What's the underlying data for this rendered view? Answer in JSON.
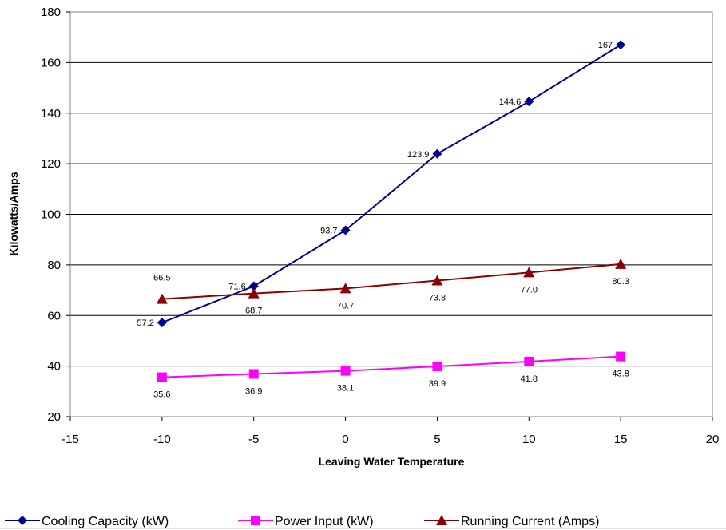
{
  "chart_data": {
    "type": "line",
    "xlabel": "Leaving Water Temperature",
    "ylabel": "Kilowatts/Amps",
    "xlim": [
      -15,
      20
    ],
    "ylim": [
      20,
      180
    ],
    "x_ticks": [
      -15,
      -10,
      -5,
      0,
      5,
      10,
      15,
      20
    ],
    "y_ticks": [
      20,
      40,
      60,
      80,
      100,
      120,
      140,
      160,
      180
    ],
    "grid": "horizontal",
    "legend_position": "bottom",
    "x": [
      -10,
      -5,
      0,
      5,
      10,
      15
    ],
    "series": [
      {
        "name": "Cooling Capacity (kW)",
        "color": "#00008B",
        "marker": "diamond",
        "values": [
          57.2,
          71.6,
          93.7,
          123.9,
          144.6,
          167
        ],
        "labels": [
          "57.2",
          "71.6",
          "93.7",
          "123.9",
          "144.6",
          "167"
        ]
      },
      {
        "name": "Power Input (kW)",
        "color": "#FF00FF",
        "marker": "square",
        "values": [
          35.6,
          36.9,
          38.1,
          39.9,
          41.8,
          43.8
        ],
        "labels": [
          "35.6",
          "36.9",
          "38.1",
          "39.9",
          "41.8",
          "43.8"
        ]
      },
      {
        "name": "Running Current (Amps)",
        "color": "#8B0000",
        "marker": "triangle",
        "values": [
          66.5,
          68.7,
          70.7,
          73.8,
          77.0,
          80.3
        ],
        "labels": [
          "66.5",
          "68.7",
          "70.7",
          "73.8",
          "77.0",
          "80.3"
        ]
      }
    ]
  }
}
